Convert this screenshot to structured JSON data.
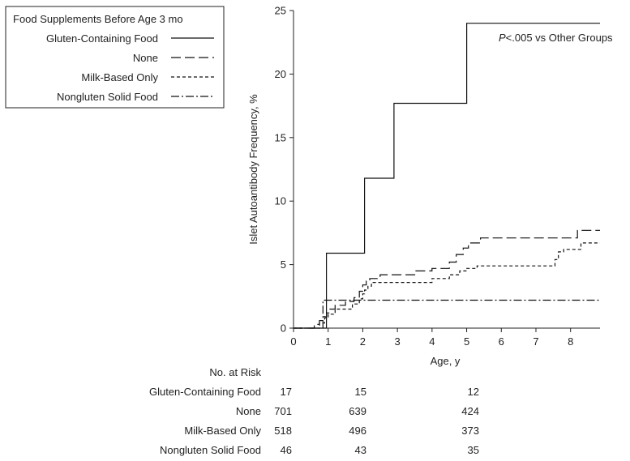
{
  "chart_data": {
    "type": "line",
    "ylabel": "Islet Autoantibody Frequency, %",
    "xlabel": "Age, y",
    "xlim": [
      0,
      8.85
    ],
    "ylim": [
      0,
      25
    ],
    "xticks": [
      0,
      1,
      2,
      3,
      4,
      5,
      6,
      7,
      8
    ],
    "yticks": [
      0,
      5,
      10,
      15,
      20,
      25
    ],
    "annotation": {
      "italic": "P",
      "rest": "<.005 vs Other Groups"
    },
    "legend": {
      "title": "Food Supplements Before Age 3 mo",
      "placement": "top-left"
    },
    "series": [
      {
        "name": "Gluten-Containing Food",
        "dash": "",
        "points": [
          [
            0,
            0
          ],
          [
            0.95,
            0
          ],
          [
            0.95,
            5.9
          ],
          [
            2.05,
            5.9
          ],
          [
            2.05,
            11.8
          ],
          [
            2.9,
            11.8
          ],
          [
            2.9,
            17.7
          ],
          [
            5.0,
            17.7
          ],
          [
            5.0,
            24.0
          ],
          [
            8.85,
            24.0
          ]
        ]
      },
      {
        "name": "None",
        "dash": "12,5",
        "points": [
          [
            0,
            0
          ],
          [
            0.6,
            0
          ],
          [
            0.6,
            0.3
          ],
          [
            0.75,
            0.3
          ],
          [
            0.75,
            0.6
          ],
          [
            0.85,
            0.6
          ],
          [
            0.85,
            0.9
          ],
          [
            0.95,
            0.9
          ],
          [
            0.95,
            1.2
          ],
          [
            1.05,
            1.2
          ],
          [
            1.05,
            1.5
          ],
          [
            1.2,
            1.5
          ],
          [
            1.2,
            1.8
          ],
          [
            1.5,
            1.8
          ],
          [
            1.5,
            2.1
          ],
          [
            1.75,
            2.1
          ],
          [
            1.75,
            2.4
          ],
          [
            1.9,
            2.4
          ],
          [
            1.9,
            2.9
          ],
          [
            2.0,
            2.9
          ],
          [
            2.0,
            3.4
          ],
          [
            2.1,
            3.4
          ],
          [
            2.1,
            3.7
          ],
          [
            2.2,
            3.7
          ],
          [
            2.2,
            3.9
          ],
          [
            2.5,
            3.9
          ],
          [
            2.5,
            4.2
          ],
          [
            3.5,
            4.2
          ],
          [
            3.5,
            4.5
          ],
          [
            4.0,
            4.5
          ],
          [
            4.0,
            4.7
          ],
          [
            4.5,
            4.7
          ],
          [
            4.5,
            5.2
          ],
          [
            4.7,
            5.2
          ],
          [
            4.7,
            5.8
          ],
          [
            4.9,
            5.8
          ],
          [
            4.9,
            6.3
          ],
          [
            5.05,
            6.3
          ],
          [
            5.05,
            6.7
          ],
          [
            5.4,
            6.7
          ],
          [
            5.4,
            7.1
          ],
          [
            8.2,
            7.1
          ],
          [
            8.2,
            7.7
          ],
          [
            8.85,
            7.7
          ]
        ]
      },
      {
        "name": "Milk-Based Only",
        "dash": "4,3",
        "points": [
          [
            0,
            0
          ],
          [
            0.75,
            0
          ],
          [
            0.75,
            0.4
          ],
          [
            0.9,
            0.4
          ],
          [
            0.9,
            0.8
          ],
          [
            1.0,
            0.8
          ],
          [
            1.0,
            1.1
          ],
          [
            1.2,
            1.1
          ],
          [
            1.2,
            1.5
          ],
          [
            1.7,
            1.5
          ],
          [
            1.7,
            1.9
          ],
          [
            1.9,
            1.9
          ],
          [
            1.9,
            2.3
          ],
          [
            2.0,
            2.3
          ],
          [
            2.0,
            2.7
          ],
          [
            2.05,
            2.7
          ],
          [
            2.05,
            3.0
          ],
          [
            2.15,
            3.0
          ],
          [
            2.15,
            3.3
          ],
          [
            2.25,
            3.3
          ],
          [
            2.25,
            3.6
          ],
          [
            4.0,
            3.6
          ],
          [
            4.0,
            3.9
          ],
          [
            4.5,
            3.9
          ],
          [
            4.5,
            4.2
          ],
          [
            4.8,
            4.2
          ],
          [
            4.8,
            4.5
          ],
          [
            5.0,
            4.5
          ],
          [
            5.0,
            4.7
          ],
          [
            5.3,
            4.7
          ],
          [
            5.3,
            4.9
          ],
          [
            7.55,
            4.9
          ],
          [
            7.55,
            5.4
          ],
          [
            7.65,
            5.4
          ],
          [
            7.65,
            6.0
          ],
          [
            7.8,
            6.0
          ],
          [
            7.8,
            6.2
          ],
          [
            8.3,
            6.2
          ],
          [
            8.3,
            6.7
          ],
          [
            8.85,
            6.7
          ]
        ]
      },
      {
        "name": "Nongluten Solid Food",
        "dash": "10,3,2,3",
        "points": [
          [
            0,
            0
          ],
          [
            0.85,
            0
          ],
          [
            0.85,
            2.2
          ],
          [
            8.85,
            2.2
          ]
        ]
      }
    ],
    "risk_table": {
      "title": "No. at Risk",
      "rows": [
        {
          "label": "Gluten-Containing Food",
          "values": [
            "17",
            "15",
            "12"
          ]
        },
        {
          "label": "None",
          "values": [
            "701",
            "639",
            "424"
          ]
        },
        {
          "label": "Milk-Based Only",
          "values": [
            "518",
            "496",
            "373"
          ]
        },
        {
          "label": "Nongluten Solid Food",
          "values": [
            "46",
            "43",
            "35"
          ]
        }
      ]
    }
  }
}
